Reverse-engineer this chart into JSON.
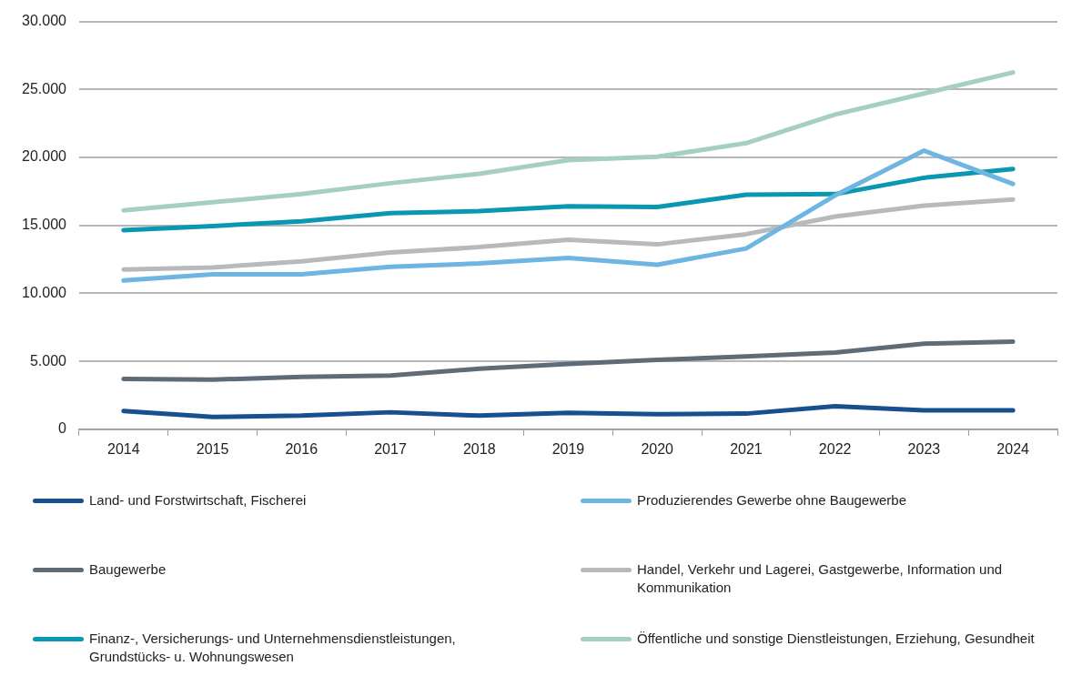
{
  "chart_data": {
    "type": "line",
    "categories": [
      "2014",
      "2015",
      "2016",
      "2017",
      "2018",
      "2019",
      "2020",
      "2021",
      "2022",
      "2023",
      "2024"
    ],
    "ylim": [
      0,
      30000
    ],
    "yticks": [
      {
        "value": 0,
        "label": "0"
      },
      {
        "value": 5000,
        "label": "5.000"
      },
      {
        "value": 10000,
        "label": "10.000"
      },
      {
        "value": 15000,
        "label": "15.000"
      },
      {
        "value": 20000,
        "label": "20.000"
      },
      {
        "value": 25000,
        "label": "25.000"
      },
      {
        "value": 30000,
        "label": "30.000"
      }
    ],
    "grid": "y",
    "legend": "bottom",
    "marker": "none",
    "line_style": "solid",
    "series": [
      {
        "name": "Land- und Forstwirtschaft, Fischerei",
        "color": "#174f8f",
        "values": [
          1350,
          900,
          1000,
          1250,
          1000,
          1200,
          1100,
          1150,
          1700,
          1400,
          1400
        ]
      },
      {
        "name": "Produzierendes Gewerbe ohne Baugewerbe",
        "color": "#6fb5e1",
        "values": [
          10950,
          11400,
          11400,
          11950,
          12200,
          12600,
          12100,
          13300,
          17200,
          20500,
          18050
        ]
      },
      {
        "name": "Baugewerbe",
        "color": "#5f6b76",
        "values": [
          3700,
          3650,
          3850,
          3950,
          4450,
          4800,
          5100,
          5350,
          5650,
          6300,
          6450
        ]
      },
      {
        "name": "Handel, Verkehr und Lagerei, Gastgewerbe, Information und Kommunikation",
        "color": "#b7babd",
        "values": [
          11750,
          11900,
          12350,
          13000,
          13400,
          13950,
          13600,
          14350,
          15650,
          16450,
          16900
        ]
      },
      {
        "name": "Finanz-, Versicherungs- und Unternehmensdienstleistungen, Grundstücks- u. Wohnungswesen",
        "color": "#0a97b2",
        "values": [
          14650,
          14950,
          15300,
          15900,
          16050,
          16400,
          16350,
          17250,
          17300,
          18500,
          19150
        ]
      },
      {
        "name": "Öffentliche und sonstige Dienstleistungen, Erziehung, Gesundheit",
        "color": "#a5cfc3",
        "values": [
          16100,
          16700,
          17300,
          18100,
          18800,
          19800,
          20050,
          21050,
          23150,
          24700,
          26250
        ]
      }
    ]
  }
}
